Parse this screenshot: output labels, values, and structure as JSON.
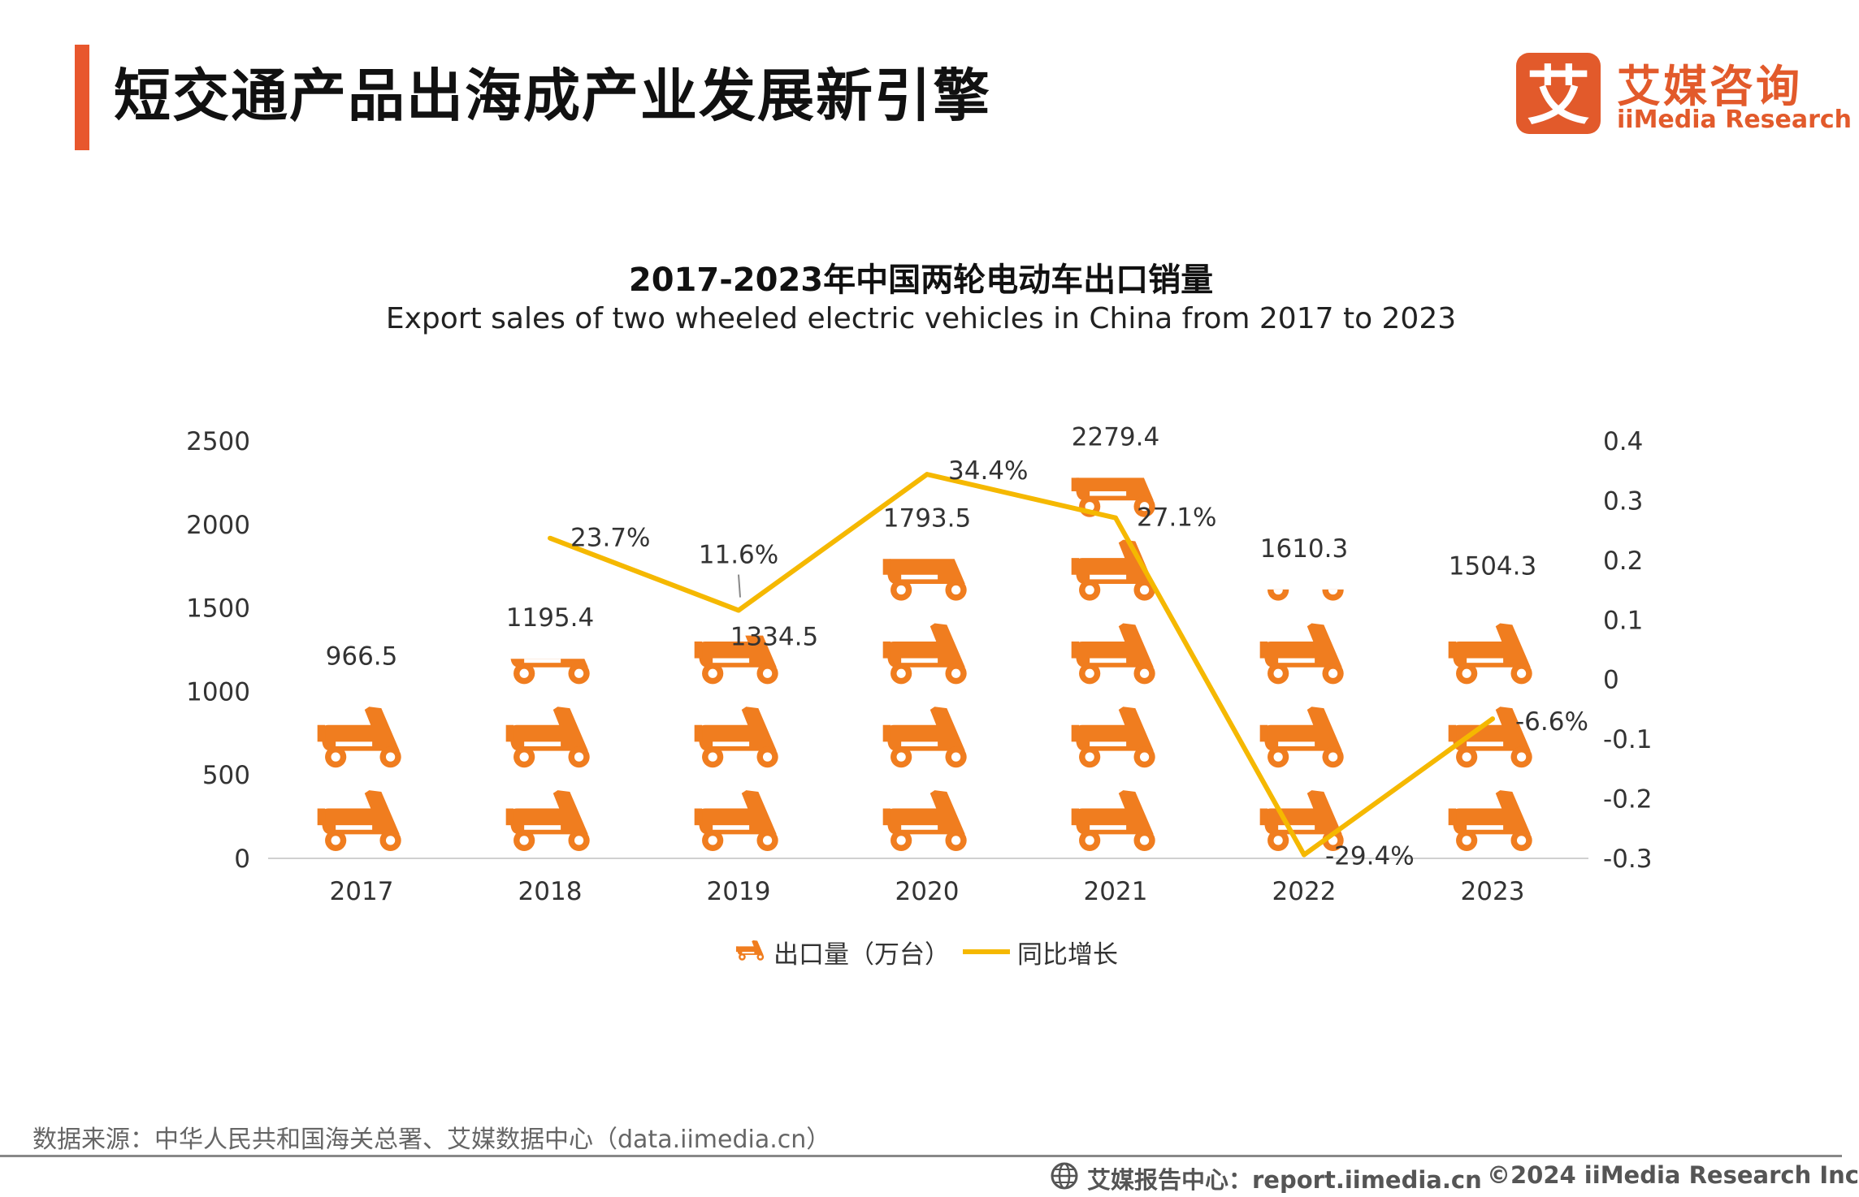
{
  "header": {
    "title": "短交通产品出海成产业发展新引擎",
    "logo_cn": "艾媒咨询",
    "logo_en": "iiMedia Research",
    "logo_glyph": "艾"
  },
  "chart_data": {
    "type": "bar",
    "title": "2017-2023年中国两轮电动车出口销量",
    "subtitle": "Export sales of two wheeled electric vehicles in China from 2017 to 2023",
    "categories": [
      "2017",
      "2018",
      "2019",
      "2020",
      "2021",
      "2022",
      "2023"
    ],
    "series": [
      {
        "name": "出口量（万台）",
        "axis": "left",
        "style": "pictogram",
        "values": [
          966.5,
          1195.4,
          1334.5,
          1793.5,
          2279.4,
          1610.3,
          1504.3
        ],
        "labels": [
          "966.5",
          "1195.4",
          "1334.5",
          "1793.5",
          "2279.4",
          "1610.3",
          "1504.3"
        ]
      },
      {
        "name": "同比增长",
        "axis": "right",
        "style": "line",
        "x": [
          "2018",
          "2019",
          "2020",
          "2021",
          "2022",
          "2023"
        ],
        "values": [
          0.237,
          0.116,
          0.344,
          0.271,
          -0.294,
          -0.066
        ],
        "labels": [
          "23.7%",
          "11.6%",
          "34.4%",
          "27.1%",
          "-29.4%",
          "-6.6%"
        ]
      }
    ],
    "y_left": {
      "min": 0,
      "max": 2500,
      "ticks": [
        "0",
        "500",
        "1000",
        "1500",
        "2000",
        "2500"
      ]
    },
    "y_right": {
      "min": -0.3,
      "max": 0.4,
      "ticks": [
        "-0.3",
        "-0.2",
        "-0.1",
        "0",
        "0.1",
        "0.2",
        "0.3",
        "0.4"
      ]
    },
    "icon_unit": 500,
    "grid": false,
    "legend": "bottom-center"
  },
  "legend": {
    "bar_label": "出口量（万台）",
    "line_label": "同比增长"
  },
  "source": "数据来源：中华人民共和国海关总署、艾媒数据中心（data.iimedia.cn）",
  "footer": {
    "center": "艾媒报告中心：report.iimedia.cn",
    "right": "©2024  iiMedia Research  Inc"
  },
  "colors": {
    "accent": "#e8572d",
    "bar": "#f07d1f",
    "line": "#f5b800",
    "logo": "#e25a2b"
  }
}
